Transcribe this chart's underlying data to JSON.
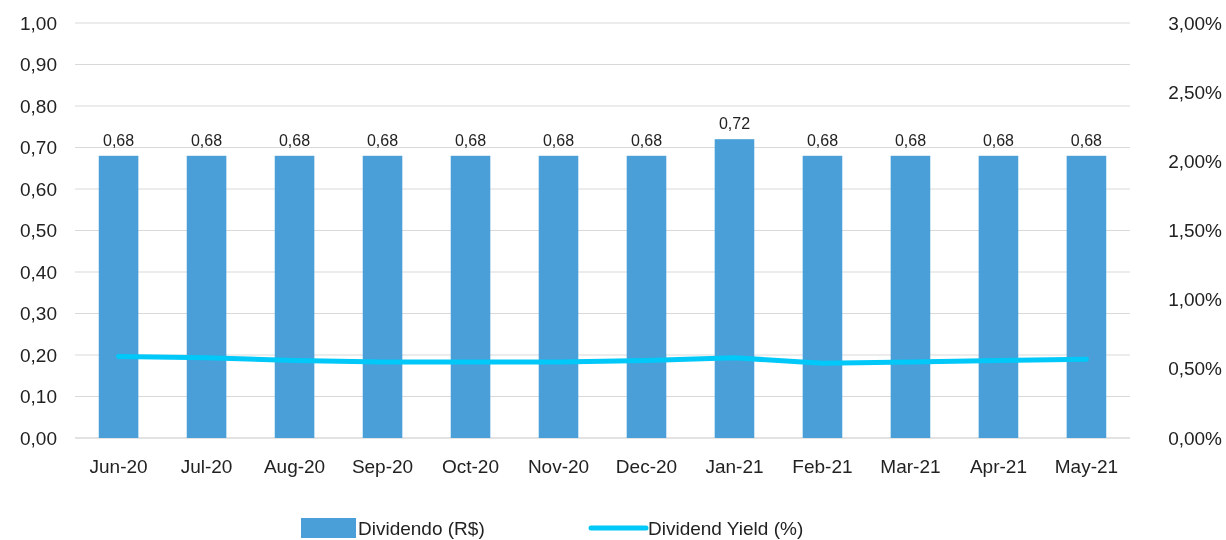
{
  "chart_data": {
    "type": "bar",
    "categories": [
      "Jun-20",
      "Jul-20",
      "Aug-20",
      "Sep-20",
      "Oct-20",
      "Nov-20",
      "Dec-20",
      "Jan-21",
      "Feb-21",
      "Mar-21",
      "Apr-21",
      "May-21"
    ],
    "series": [
      {
        "name": "Dividendo (R$)",
        "color": "#4a9fd8",
        "values": [
          0.68,
          0.68,
          0.68,
          0.68,
          0.68,
          0.68,
          0.68,
          0.72,
          0.68,
          0.68,
          0.68,
          0.68
        ],
        "value_labels": [
          "0,68",
          "0,68",
          "0,68",
          "0,68",
          "0,68",
          "0,68",
          "0,68",
          "0,72",
          "0,68",
          "0,68",
          "0,68",
          "0,68"
        ]
      },
      {
        "name": "Dividend Yield (%)",
        "type": "line",
        "axis": "y2",
        "color": "#00c8f8",
        "values": [
          0.59,
          0.58,
          0.56,
          0.55,
          0.55,
          0.55,
          0.56,
          0.58,
          0.54,
          0.55,
          0.56,
          0.57
        ]
      }
    ],
    "ylim": [
      0,
      1
    ],
    "yticks": [
      {
        "value": 0,
        "label": "0,00"
      },
      {
        "value": 0.1,
        "label": "0,10"
      },
      {
        "value": 0.2,
        "label": "0,20"
      },
      {
        "value": 0.3,
        "label": "0,30"
      },
      {
        "value": 0.4,
        "label": "0,40"
      },
      {
        "value": 0.5,
        "label": "0,50"
      },
      {
        "value": 0.6,
        "label": "0,60"
      },
      {
        "value": 0.7,
        "label": "0,70"
      },
      {
        "value": 0.8,
        "label": "0,80"
      },
      {
        "value": 0.9,
        "label": "0,90"
      },
      {
        "value": 1,
        "label": "1,00"
      }
    ],
    "y2lim": [
      0,
      3
    ],
    "y2ticks": [
      {
        "value": 0,
        "label": "0,00%"
      },
      {
        "value": 0.5,
        "label": "0,50%"
      },
      {
        "value": 1,
        "label": "1,00%"
      },
      {
        "value": 1.5,
        "label": "1,50%"
      },
      {
        "value": 2,
        "label": "2,00%"
      },
      {
        "value": 2.5,
        "label": "2,50%"
      },
      {
        "value": 3,
        "label": "3,00%"
      }
    ],
    "grid": "y",
    "legend": "bottom",
    "marker": "none",
    "line_style": "solid"
  }
}
